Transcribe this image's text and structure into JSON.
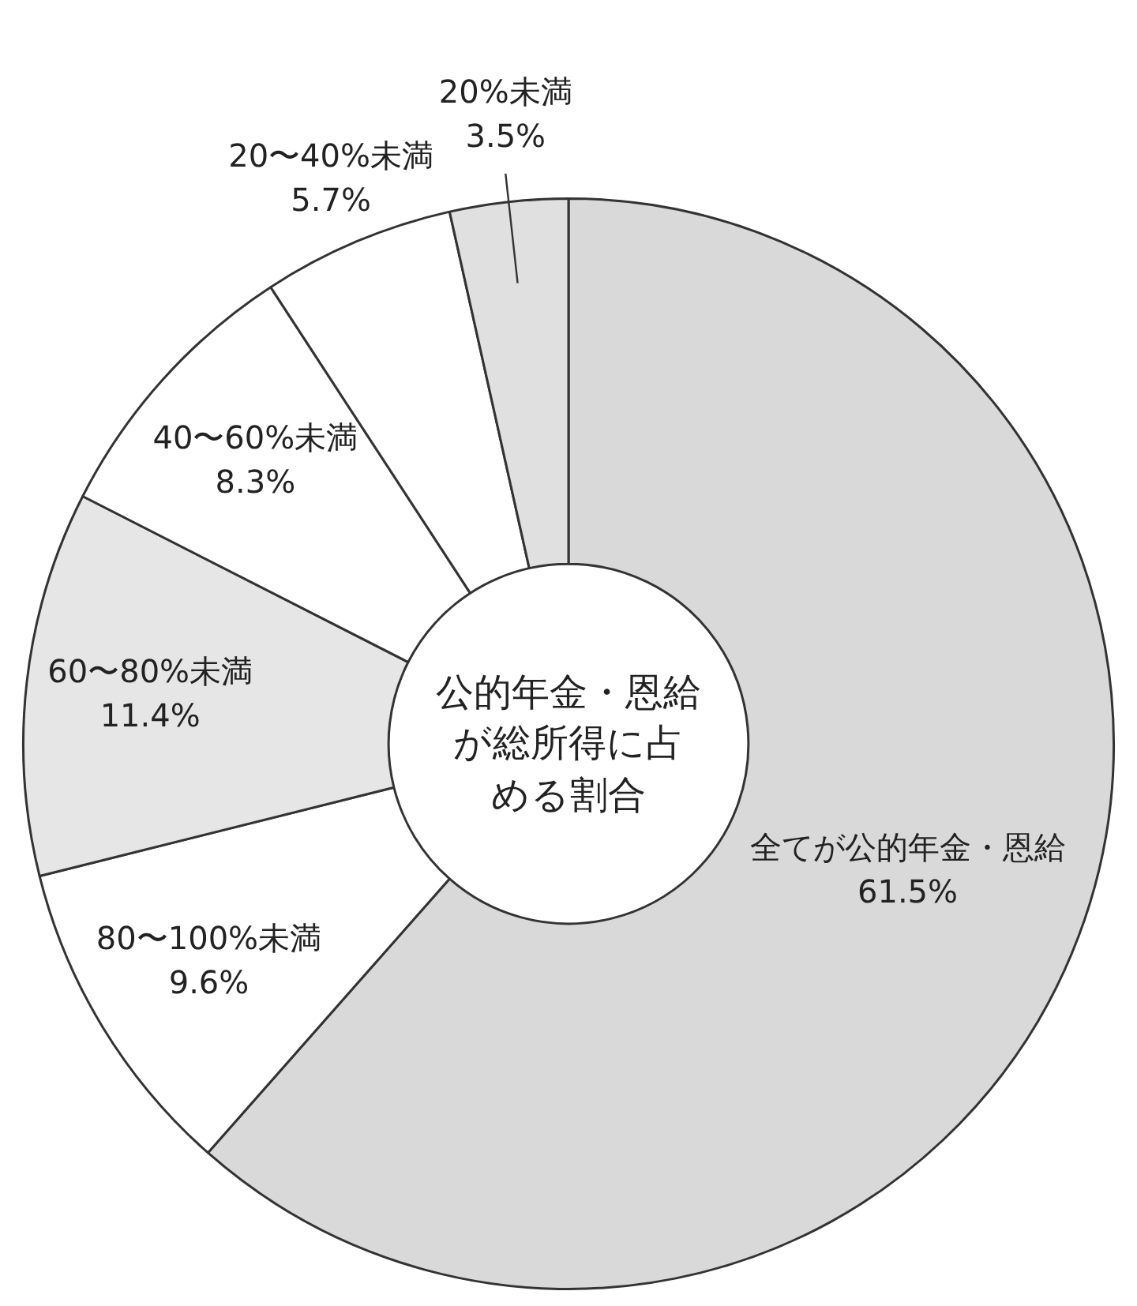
{
  "chart_data": {
    "type": "donut",
    "title": "公的年金・恩給が総所得に占める割合",
    "categories": [
      "全てが公的年金・恩給",
      "80〜100%未満",
      "60〜80%未満",
      "40〜60%未満",
      "20〜40%未満",
      "20%未満"
    ],
    "values": [
      61.5,
      9.6,
      11.4,
      8.3,
      5.7,
      3.5
    ],
    "value_labels": [
      "61.5%",
      "9.6%",
      "11.4%",
      "8.3%",
      "5.7%",
      "3.5%"
    ],
    "colors": [
      "#d9d9d9",
      "#ffffff",
      "#e6e6e6",
      "#ffffff",
      "#ffffff",
      "#e0e0e0"
    ],
    "legend": false
  }
}
